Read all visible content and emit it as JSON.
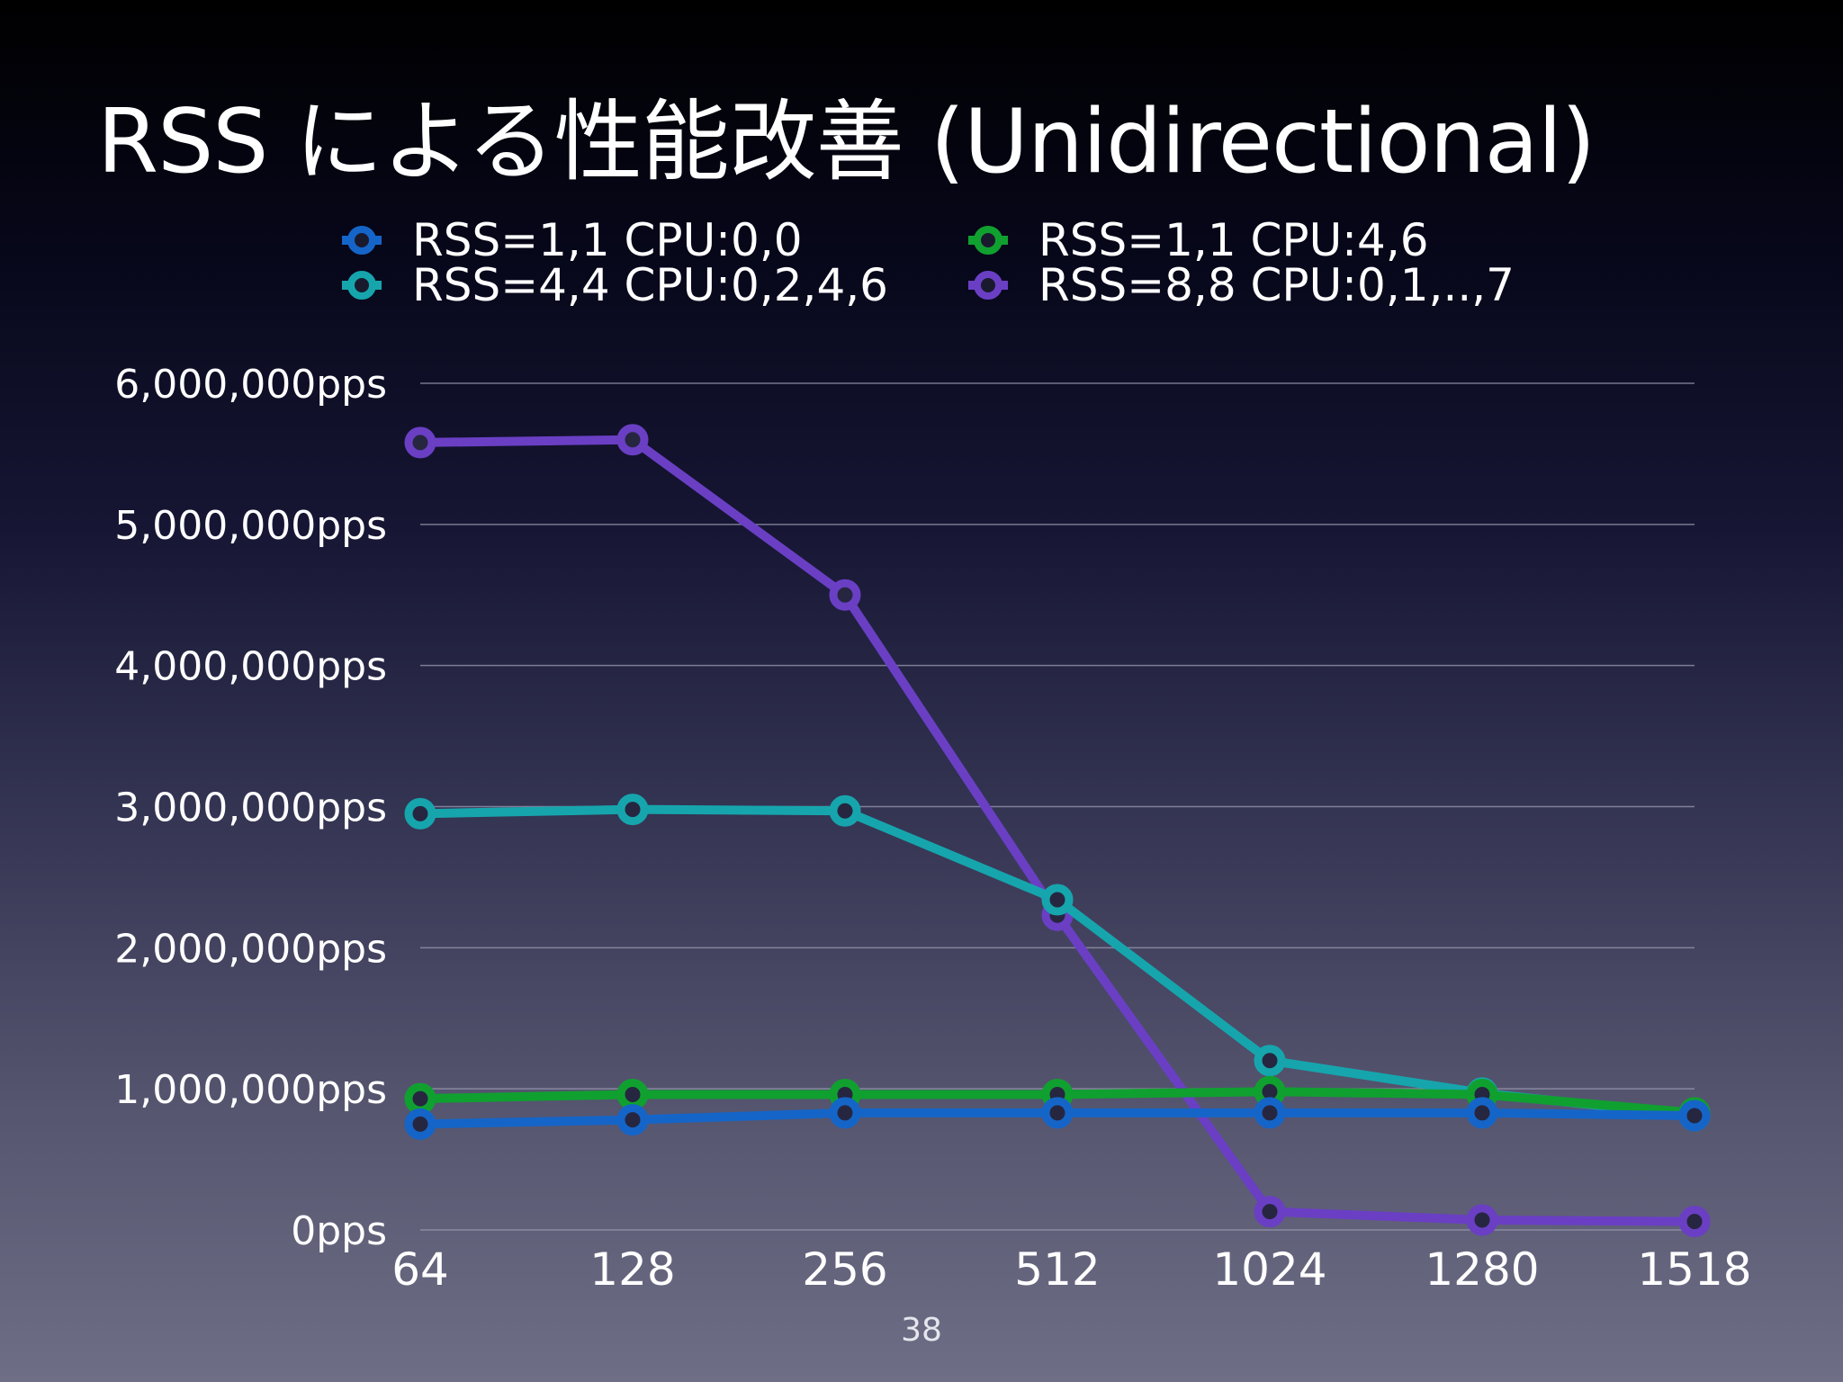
{
  "slide": {
    "title": "RSS による性能改善 (Unidirectional)",
    "page_number": "38"
  },
  "chart_data": {
    "type": "line",
    "title": "RSS による性能改善 (Unidirectional)",
    "xlabel": "",
    "ylabel": "",
    "categories": [
      "64",
      "128",
      "256",
      "512",
      "1024",
      "1280",
      "1518"
    ],
    "y_tick_labels": [
      "0pps",
      "1,000,000pps",
      "2,000,000pps",
      "3,000,000pps",
      "4,000,000pps",
      "5,000,000pps",
      "6,000,000pps"
    ],
    "y_ticks": [
      0,
      1000000,
      2000000,
      3000000,
      4000000,
      5000000,
      6000000
    ],
    "ylim": [
      0,
      6000000
    ],
    "grid": true,
    "legend_position": "top",
    "series": [
      {
        "name": "RSS=1,1 CPU:0,0",
        "color": "#1565c8",
        "values": [
          750000,
          780000,
          830000,
          830000,
          830000,
          830000,
          810000
        ]
      },
      {
        "name": "RSS=1,1 CPU:4,6",
        "color": "#10a030",
        "values": [
          930000,
          960000,
          960000,
          960000,
          980000,
          960000,
          830000
        ]
      },
      {
        "name": "RSS=4,4 CPU:0,2,4,6",
        "color": "#16a5ad",
        "values": [
          2950000,
          2980000,
          2970000,
          2340000,
          1200000,
          970000,
          810000
        ]
      },
      {
        "name": "RSS=8,8 CPU:0,1,..,7",
        "color": "#6a3fc4",
        "values": [
          5580000,
          5600000,
          4500000,
          2230000,
          130000,
          70000,
          60000
        ]
      }
    ]
  }
}
